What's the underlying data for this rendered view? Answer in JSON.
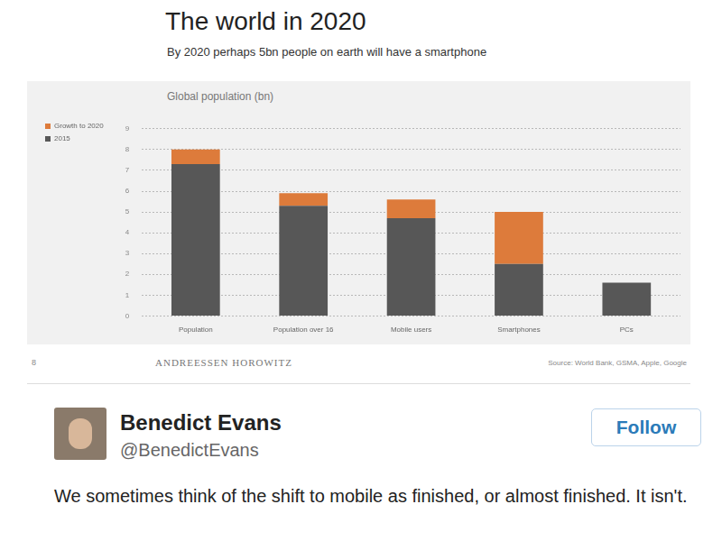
{
  "chart_data": {
    "type": "bar",
    "title": "The world in 2020",
    "subtitle": "By 2020 perhaps 5bn people on earth will have a smartphone",
    "y_label": "Global population (bn)",
    "categories": [
      "Population",
      "Population over 16",
      "Mobile users",
      "Smartphones",
      "PCs"
    ],
    "series": [
      {
        "name": "2015",
        "color": "#575757",
        "values": [
          7.3,
          5.3,
          4.7,
          2.5,
          1.6
        ]
      },
      {
        "name": "Growth to 2020",
        "color": "#dd7b3b",
        "values": [
          0.7,
          0.6,
          0.9,
          2.5,
          null
        ]
      }
    ],
    "stacked": true,
    "ylim": [
      0,
      9
    ],
    "yticks": [
      0,
      1,
      2,
      3,
      4,
      5,
      6,
      7,
      8,
      9
    ],
    "grid": true,
    "legend": "upper left"
  },
  "slide": {
    "page_number": "8",
    "brand": "ANDREESSEN HOROWITZ",
    "source": "Source: World Bank, GSMA, Apple, Google"
  },
  "tweet": {
    "name": "Benedict Evans",
    "handle": "@BenedictEvans",
    "button": "Follow",
    "text": "We sometimes think of the shift to mobile as finished, or almost finished. It isn't."
  }
}
